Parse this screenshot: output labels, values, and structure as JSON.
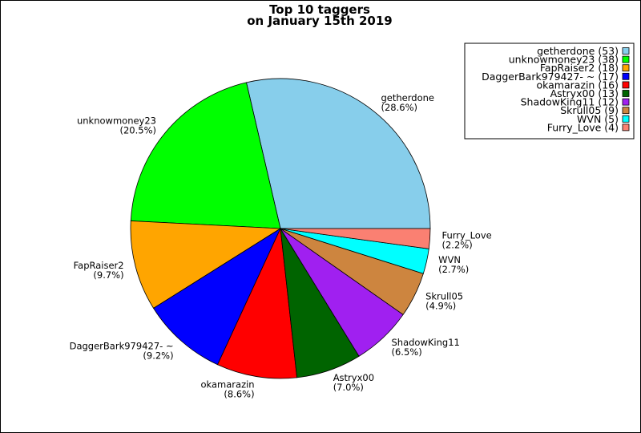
{
  "chart_data": {
    "type": "pie",
    "title": [
      "Top 10 taggers",
      "on January 15th 2019"
    ],
    "legend_position": "top-right",
    "slices": [
      {
        "name": "getherdone",
        "value": 53,
        "percent": "28.6%",
        "legend": "getherdone (53)",
        "color": "#87ceeb"
      },
      {
        "name": "unknowmoney23",
        "value": 38,
        "percent": "20.5%",
        "legend": "unknowmoney23 (38)",
        "color": "#00ff00"
      },
      {
        "name": "FapRaiser2",
        "value": 18,
        "percent": "9.7%",
        "legend": "FapRaiser2 (18)",
        "color": "#ffa500"
      },
      {
        "name": "DaggerBark979427- ~",
        "value": 17,
        "percent": "9.2%",
        "legend": "DaggerBark979427- ~ (17)",
        "color": "#0000ff"
      },
      {
        "name": "okamarazin",
        "value": 16,
        "percent": "8.6%",
        "legend": "okamarazin (16)",
        "color": "#ff0000"
      },
      {
        "name": "Astryx00",
        "value": 13,
        "percent": "7.0%",
        "legend": "Astryx00 (13)",
        "color": "#006400"
      },
      {
        "name": "ShadowKing11",
        "value": 12,
        "percent": "6.5%",
        "legend": "ShadowKing11 (12)",
        "color": "#a020f0"
      },
      {
        "name": "Skrull05",
        "value": 9,
        "percent": "4.9%",
        "legend": "Skrull05 (9)",
        "color": "#cd853f"
      },
      {
        "name": "WVN",
        "value": 5,
        "percent": "2.7%",
        "legend": "WVN (5)",
        "color": "#00ffff"
      },
      {
        "name": "Furry_Love",
        "value": 4,
        "percent": "2.2%",
        "legend": "Furry_Love (4)",
        "color": "#fa8072"
      }
    ]
  }
}
